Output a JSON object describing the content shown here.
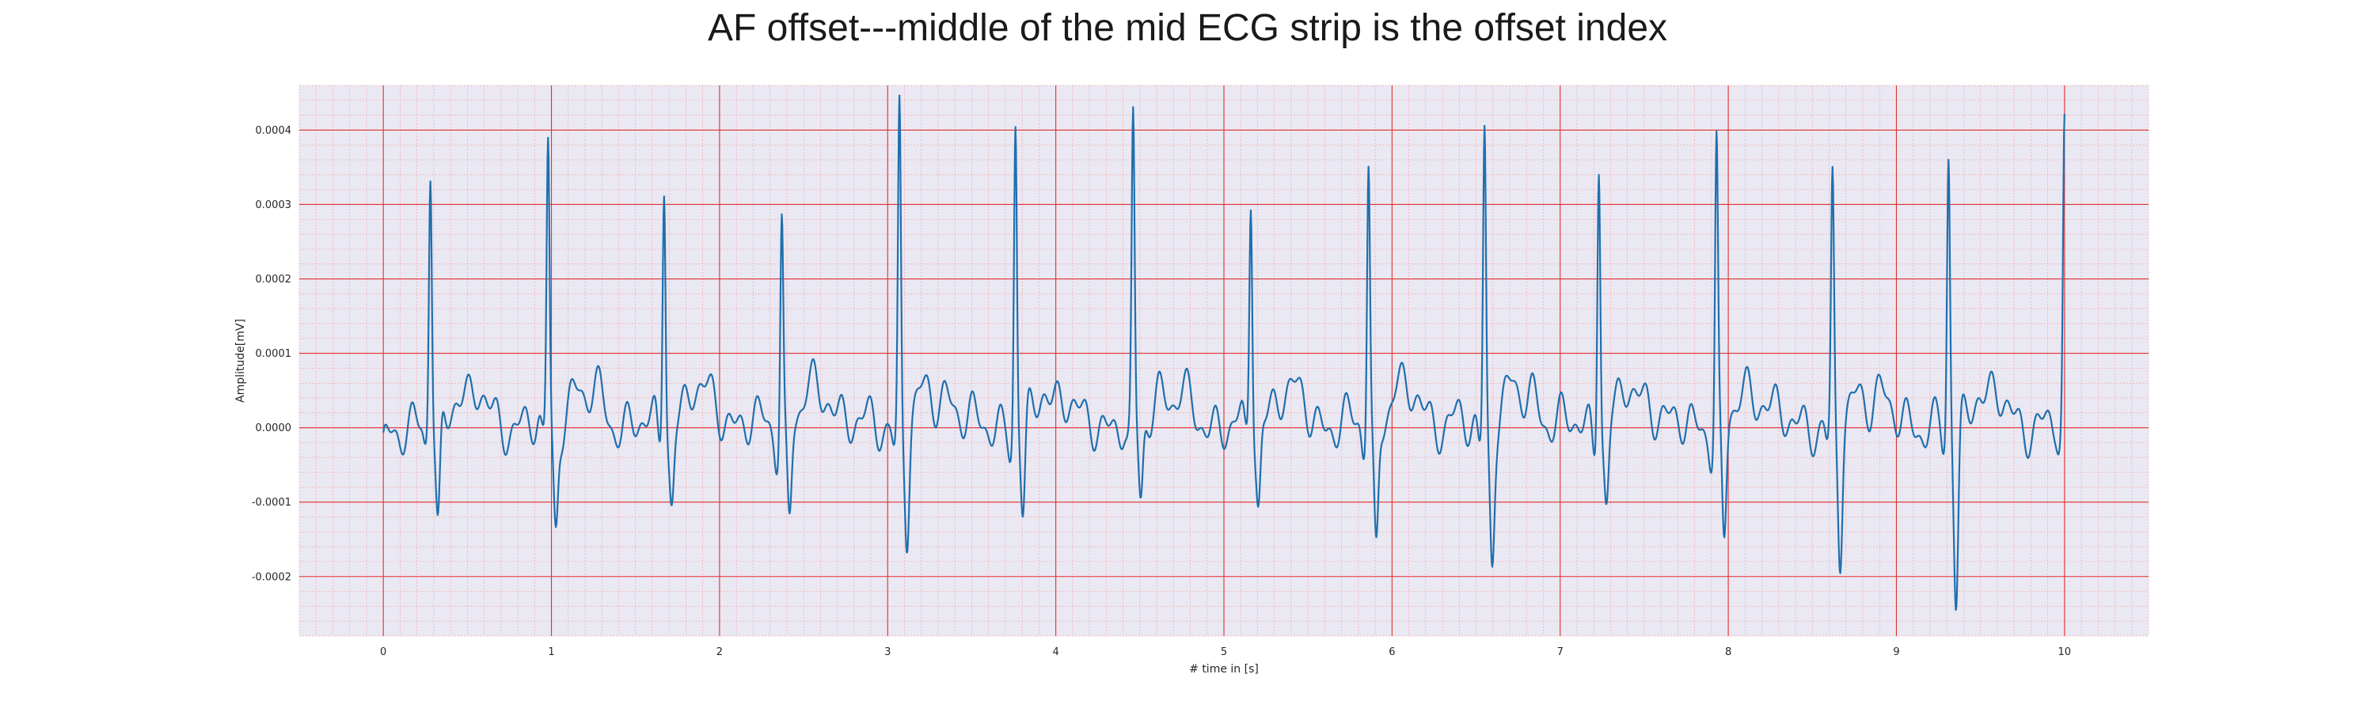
{
  "chart_data": {
    "type": "line",
    "title": "AF offset---middle of the mid ECG strip is the offset index",
    "xlabel": "# time in [s]",
    "ylabel": "Amplitude[mV]",
    "xlim": [
      -0.5,
      10.5
    ],
    "ylim": [
      -0.00028,
      0.00046
    ],
    "x_ticks": [
      0,
      1,
      2,
      3,
      4,
      5,
      6,
      7,
      8,
      9,
      10
    ],
    "x_tick_labels": [
      "0",
      "1",
      "2",
      "3",
      "4",
      "5",
      "6",
      "7",
      "8",
      "9",
      "10"
    ],
    "y_ticks": [
      -0.0002,
      -0.0001,
      0.0,
      0.0001,
      0.0002,
      0.0003,
      0.0004
    ],
    "y_tick_labels": [
      "-0.0002",
      "-0.0001",
      "0.0000",
      "0.0001",
      "0.0002",
      "0.0003",
      "0.0004"
    ],
    "grid": true,
    "grid_major_color": "#e03030",
    "grid_minor_color": "#f4a7a7",
    "plot_background": "#eae8f2",
    "line_color": "#1f6fae",
    "beats": [
      {
        "t": 0.28,
        "peak": 0.00034,
        "trough": -0.000155
      },
      {
        "t": 0.98,
        "peak": 0.000375,
        "trough": -0.000138
      },
      {
        "t": 1.67,
        "peak": 0.00034,
        "trough": -0.0001
      },
      {
        "t": 2.37,
        "peak": 0.000285,
        "trough": -0.000128
      },
      {
        "t": 3.07,
        "peak": 0.000428,
        "trough": -0.000142
      },
      {
        "t": 3.76,
        "peak": 0.000405,
        "trough": -0.000132
      },
      {
        "t": 4.46,
        "peak": 0.000395,
        "trough": -0.00011
      },
      {
        "t": 5.16,
        "peak": 0.00031,
        "trough": -0.00011
      },
      {
        "t": 5.86,
        "peak": 0.000358,
        "trough": -0.000172
      },
      {
        "t": 6.55,
        "peak": 0.000402,
        "trough": -0.000168
      },
      {
        "t": 7.23,
        "peak": 0.000373,
        "trough": -0.000105
      },
      {
        "t": 7.93,
        "peak": 0.00038,
        "trough": -0.000168
      },
      {
        "t": 8.62,
        "peak": 0.000318,
        "trough": -0.000178
      },
      {
        "t": 9.31,
        "peak": 0.000355,
        "trough": -0.00025
      },
      {
        "t": 10.0,
        "peak": 0.000385,
        "trough": -2.5e-05
      }
    ],
    "start_value": -4.5e-05
  }
}
